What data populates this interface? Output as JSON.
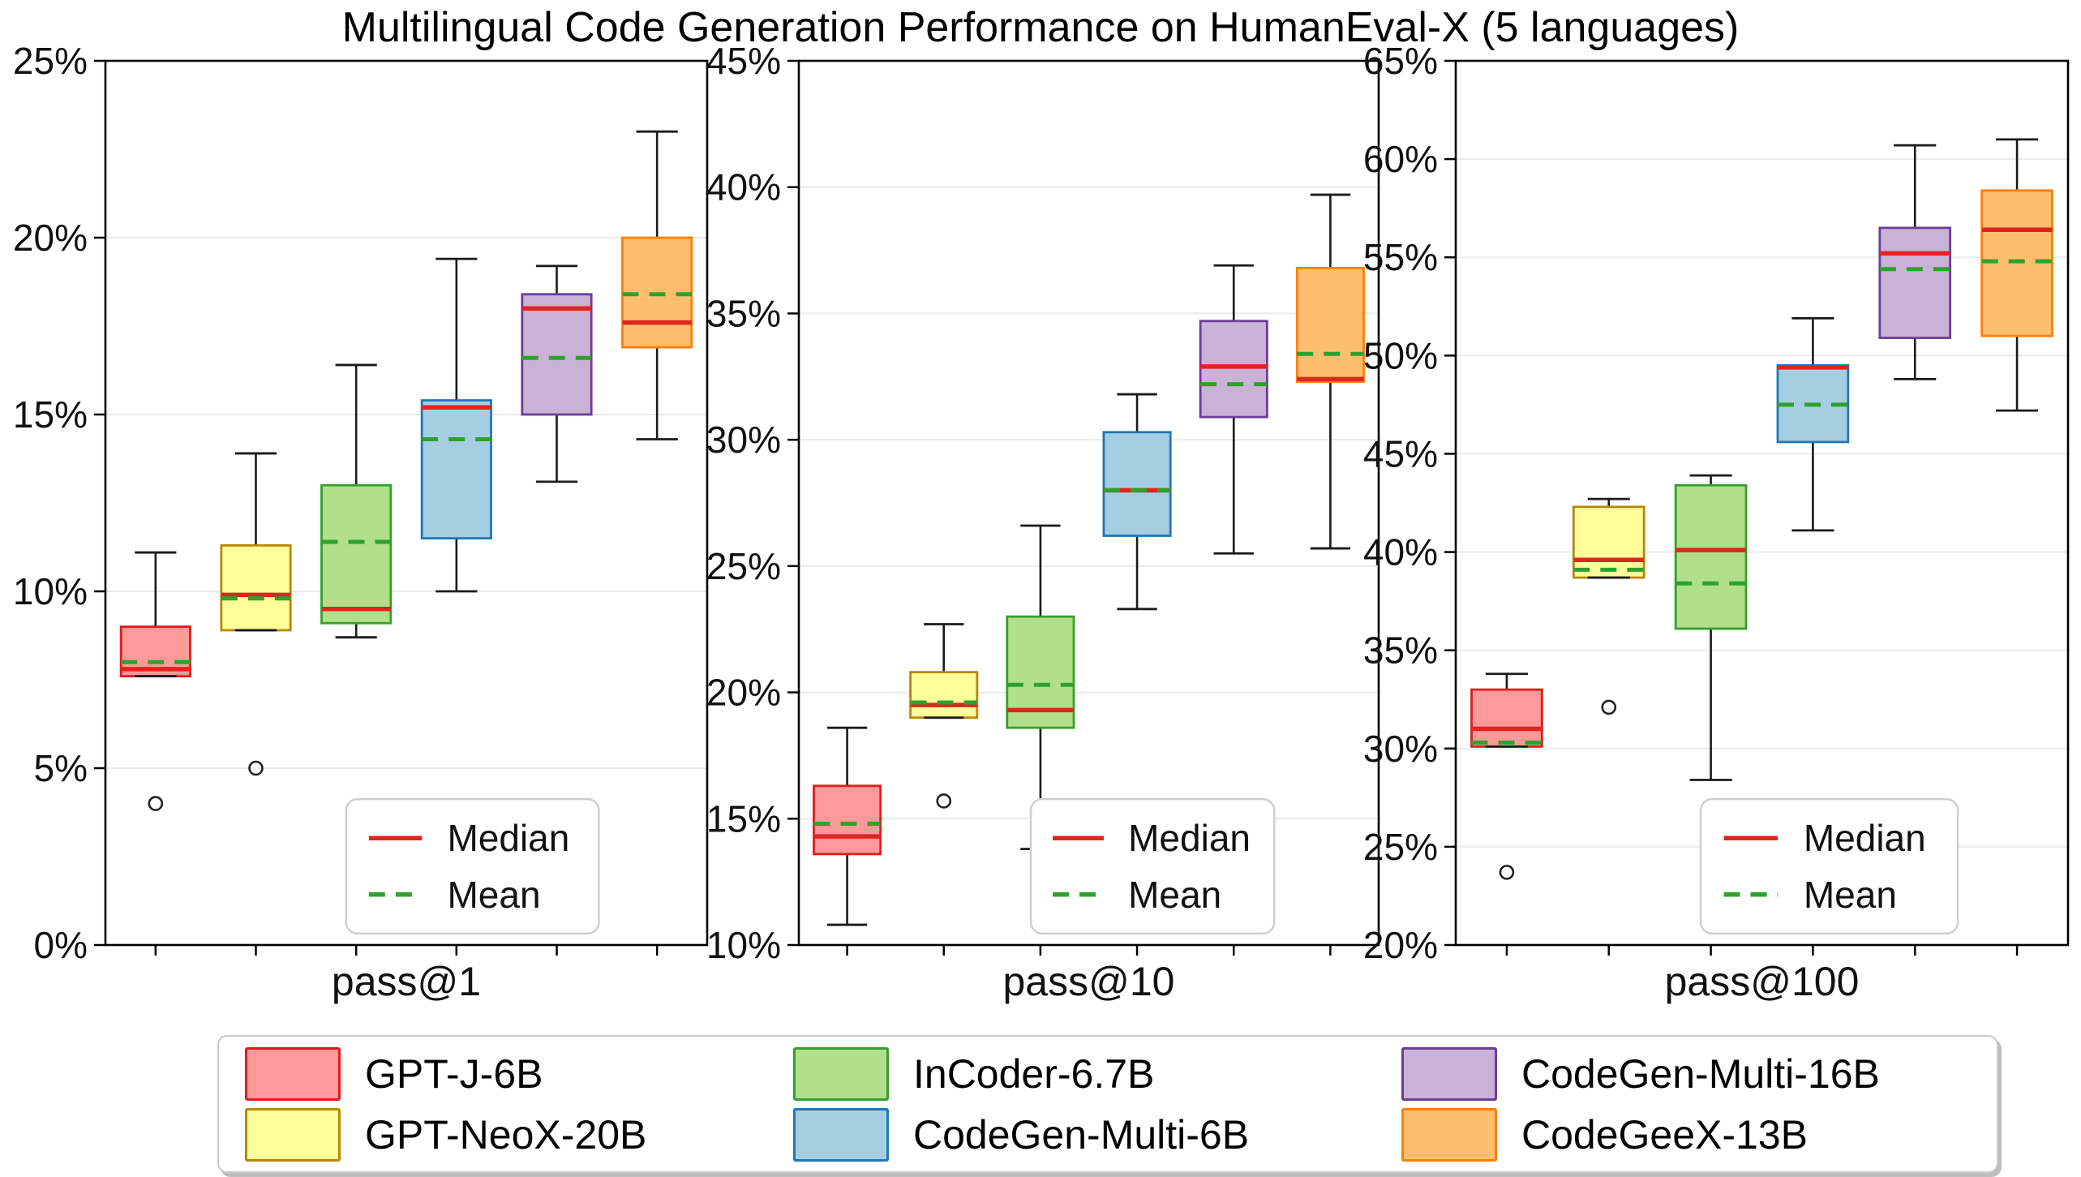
{
  "title": "Multilingual Code Generation Performance on HumanEval-X (5 languages)",
  "models": [
    {
      "label": "GPT-J-6B",
      "fill": "#fb9a99",
      "edge": "#e31a1c"
    },
    {
      "label": "GPT-NeoX-20B",
      "fill": "#ffff99",
      "edge": "#b8860b"
    },
    {
      "label": "InCoder-6.7B",
      "fill": "#b2df8a",
      "edge": "#33a02c"
    },
    {
      "label": "CodeGen-Multi-6B",
      "fill": "#a6cee3",
      "edge": "#1f78b4"
    },
    {
      "label": "CodeGen-Multi-16B",
      "fill": "#cab2d6",
      "edge": "#6a3d9a"
    },
    {
      "label": "CodeGeeX-13B",
      "fill": "#fdbf6f",
      "edge": "#ff7f00"
    }
  ],
  "chart_data": {
    "type": "boxplot",
    "title": "Multilingual Code Generation Performance on HumanEval-X (5 languages)",
    "grid": true,
    "legend": {
      "median_label": "Median",
      "mean_label": "Mean",
      "median_color": "#e02420",
      "mean_color": "#2ea12e"
    },
    "panels": [
      {
        "metric": "pass@1",
        "ylim": [
          0,
          25
        ],
        "yticks": [
          0,
          5,
          10,
          15,
          20,
          25
        ],
        "boxes": [
          {
            "model": "GPT-J-6B",
            "whisker_low": 7.6,
            "q1": 7.6,
            "median": 7.8,
            "mean": 8.0,
            "q3": 9.0,
            "whisker_high": 11.1,
            "outliers": [
              4.0
            ]
          },
          {
            "model": "GPT-NeoX-20B",
            "whisker_low": 8.9,
            "q1": 8.9,
            "median": 9.9,
            "mean": 9.8,
            "q3": 11.3,
            "whisker_high": 13.9,
            "outliers": [
              5.0
            ]
          },
          {
            "model": "InCoder-6.7B",
            "whisker_low": 8.7,
            "q1": 9.1,
            "median": 9.5,
            "mean": 11.4,
            "q3": 13.0,
            "whisker_high": 16.4,
            "outliers": []
          },
          {
            "model": "CodeGen-Multi-6B",
            "whisker_low": 10.0,
            "q1": 11.5,
            "median": 15.2,
            "mean": 14.3,
            "q3": 15.4,
            "whisker_high": 19.4,
            "outliers": []
          },
          {
            "model": "CodeGen-Multi-16B",
            "whisker_low": 13.1,
            "q1": 15.0,
            "median": 18.0,
            "mean": 16.6,
            "q3": 18.4,
            "whisker_high": 19.2,
            "outliers": []
          },
          {
            "model": "CodeGeeX-13B",
            "whisker_low": 14.3,
            "q1": 16.9,
            "median": 17.6,
            "mean": 18.4,
            "q3": 20.0,
            "whisker_high": 23.0,
            "outliers": []
          }
        ]
      },
      {
        "metric": "pass@10",
        "ylim": [
          10,
          45
        ],
        "yticks": [
          10,
          15,
          20,
          25,
          30,
          35,
          40,
          45
        ],
        "boxes": [
          {
            "model": "GPT-J-6B",
            "whisker_low": 10.8,
            "q1": 13.6,
            "median": 14.3,
            "mean": 14.8,
            "q3": 16.3,
            "whisker_high": 18.6,
            "outliers": []
          },
          {
            "model": "GPT-NeoX-20B",
            "whisker_low": 19.0,
            "q1": 19.0,
            "median": 19.5,
            "mean": 19.6,
            "q3": 20.8,
            "whisker_high": 22.7,
            "outliers": [
              15.7
            ]
          },
          {
            "model": "InCoder-6.7B",
            "whisker_low": 13.8,
            "q1": 18.6,
            "median": 19.3,
            "mean": 20.3,
            "q3": 23.0,
            "whisker_high": 26.6,
            "outliers": []
          },
          {
            "model": "CodeGen-Multi-6B",
            "whisker_low": 23.3,
            "q1": 26.2,
            "median": 28.0,
            "mean": 28.0,
            "q3": 30.3,
            "whisker_high": 31.8,
            "outliers": []
          },
          {
            "model": "CodeGen-Multi-16B",
            "whisker_low": 25.5,
            "q1": 30.9,
            "median": 32.9,
            "mean": 32.2,
            "q3": 34.7,
            "whisker_high": 36.9,
            "outliers": []
          },
          {
            "model": "CodeGeeX-13B",
            "whisker_low": 25.7,
            "q1": 32.3,
            "median": 32.4,
            "mean": 33.4,
            "q3": 36.8,
            "whisker_high": 39.7,
            "outliers": []
          }
        ]
      },
      {
        "metric": "pass@100",
        "ylim": [
          20,
          65
        ],
        "yticks": [
          20,
          25,
          30,
          35,
          40,
          45,
          50,
          55,
          60,
          65
        ],
        "boxes": [
          {
            "model": "GPT-J-6B",
            "whisker_low": 30.1,
            "q1": 30.1,
            "median": 31.0,
            "mean": 30.3,
            "q3": 33.0,
            "whisker_high": 33.8,
            "outliers": [
              23.7
            ]
          },
          {
            "model": "GPT-NeoX-20B",
            "whisker_low": 38.7,
            "q1": 38.7,
            "median": 39.6,
            "mean": 39.1,
            "q3": 42.3,
            "whisker_high": 42.7,
            "outliers": [
              32.1
            ]
          },
          {
            "model": "InCoder-6.7B",
            "whisker_low": 28.4,
            "q1": 36.1,
            "median": 40.1,
            "mean": 38.4,
            "q3": 43.4,
            "whisker_high": 43.9,
            "outliers": []
          },
          {
            "model": "CodeGen-Multi-6B",
            "whisker_low": 41.1,
            "q1": 45.6,
            "median": 49.4,
            "mean": 47.5,
            "q3": 49.5,
            "whisker_high": 51.9,
            "outliers": []
          },
          {
            "model": "CodeGen-Multi-16B",
            "whisker_low": 48.8,
            "q1": 50.9,
            "median": 55.2,
            "mean": 54.4,
            "q3": 56.5,
            "whisker_high": 60.7,
            "outliers": []
          },
          {
            "model": "CodeGeeX-13B",
            "whisker_low": 47.2,
            "q1": 51.0,
            "median": 56.4,
            "mean": 54.8,
            "q3": 58.4,
            "whisker_high": 61.0,
            "outliers": []
          }
        ]
      }
    ]
  }
}
